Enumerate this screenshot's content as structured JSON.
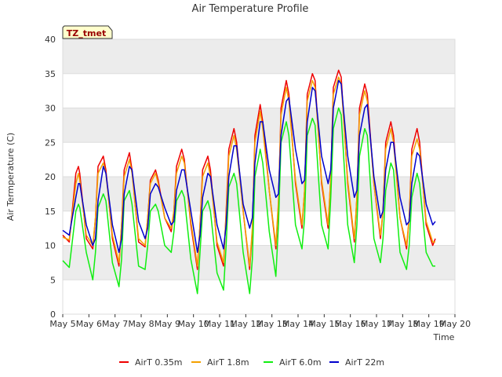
{
  "chart_data": {
    "type": "line",
    "title": "Air Temperature Profile",
    "xlabel": "Time",
    "ylabel": "Air Termperature (C)",
    "badge": "TZ_tmet",
    "xlim": [
      5,
      20
    ],
    "ylim": [
      0,
      40
    ],
    "x_ticks": [
      {
        "value": 5,
        "label": "May 5"
      },
      {
        "value": 6,
        "label": "May 6"
      },
      {
        "value": 7,
        "label": "May 7"
      },
      {
        "value": 8,
        "label": "May 8"
      },
      {
        "value": 9,
        "label": "May 9"
      },
      {
        "value": 10,
        "label": "May 10"
      },
      {
        "value": 11,
        "label": "May 11"
      },
      {
        "value": 12,
        "label": "May 12"
      },
      {
        "value": 13,
        "label": "May 13"
      },
      {
        "value": 14,
        "label": "May 14"
      },
      {
        "value": 15,
        "label": "May 15"
      },
      {
        "value": 16,
        "label": "May 16"
      },
      {
        "value": 17,
        "label": "May 17"
      },
      {
        "value": 18,
        "label": "May 18"
      },
      {
        "value": 19,
        "label": "May 19"
      },
      {
        "value": 20,
        "label": "May 20"
      }
    ],
    "y_ticks": [
      0,
      5,
      10,
      15,
      20,
      25,
      30,
      35,
      40
    ],
    "grid": true,
    "legend": "bottom",
    "series": [
      {
        "name": "AirT 0.35m",
        "color": "#ee0000",
        "x": [
          5.0,
          5.25,
          5.5,
          5.6,
          5.65,
          5.9,
          6.15,
          6.25,
          6.35,
          6.55,
          6.65,
          6.9,
          7.15,
          7.25,
          7.35,
          7.55,
          7.65,
          7.9,
          8.15,
          8.25,
          8.35,
          8.55,
          8.65,
          8.9,
          9.15,
          9.25,
          9.35,
          9.55,
          9.65,
          9.9,
          10.15,
          10.25,
          10.35,
          10.55,
          10.65,
          10.9,
          11.15,
          11.25,
          11.35,
          11.55,
          11.65,
          11.9,
          12.15,
          12.25,
          12.35,
          12.55,
          12.65,
          12.9,
          13.15,
          13.25,
          13.35,
          13.55,
          13.65,
          13.9,
          14.15,
          14.25,
          14.35,
          14.55,
          14.65,
          14.9,
          15.15,
          15.25,
          15.35,
          15.55,
          15.65,
          15.9,
          16.15,
          16.25,
          16.35,
          16.55,
          16.65,
          16.9,
          17.15,
          17.25,
          17.35,
          17.55,
          17.65,
          17.9,
          18.15,
          18.25,
          18.35,
          18.55,
          18.65,
          18.9,
          19.15,
          19.25
        ],
        "y": [
          11.5,
          10.5,
          20.5,
          21.5,
          20.5,
          11.0,
          9.5,
          14.0,
          21.5,
          23.0,
          21.0,
          11.0,
          7.0,
          13.0,
          21.0,
          23.5,
          21.0,
          10.5,
          9.8,
          14.0,
          19.5,
          21.0,
          19.5,
          14.0,
          12.0,
          15.0,
          21.5,
          24.0,
          22.5,
          13.0,
          6.5,
          13.0,
          21.0,
          23.0,
          21.0,
          10.0,
          7.0,
          15.0,
          24.0,
          27.0,
          25.0,
          15.0,
          6.5,
          12.0,
          26.0,
          30.5,
          28.0,
          18.0,
          9.5,
          16.0,
          30.0,
          34.0,
          32.0,
          19.0,
          12.5,
          18.0,
          32.0,
          35.0,
          34.0,
          19.0,
          12.5,
          20.0,
          33.0,
          35.5,
          34.5,
          19.0,
          10.5,
          17.0,
          30.0,
          33.5,
          32.0,
          19.0,
          11.0,
          15.0,
          25.0,
          28.0,
          26.0,
          14.0,
          9.5,
          14.0,
          24.0,
          27.0,
          25.0,
          13.0,
          10.0,
          11.0
        ]
      },
      {
        "name": "AirT 1.8m",
        "color": "#f4a000",
        "x": [
          5.0,
          5.25,
          5.5,
          5.6,
          5.65,
          5.9,
          6.15,
          6.25,
          6.35,
          6.55,
          6.65,
          6.9,
          7.15,
          7.25,
          7.35,
          7.55,
          7.65,
          7.9,
          8.15,
          8.25,
          8.35,
          8.55,
          8.65,
          8.9,
          9.15,
          9.25,
          9.35,
          9.55,
          9.65,
          9.9,
          10.15,
          10.25,
          10.35,
          10.55,
          10.65,
          10.9,
          11.15,
          11.25,
          11.35,
          11.55,
          11.65,
          11.9,
          12.15,
          12.25,
          12.35,
          12.55,
          12.65,
          12.9,
          13.15,
          13.25,
          13.35,
          13.55,
          13.65,
          13.9,
          14.15,
          14.25,
          14.35,
          14.55,
          14.65,
          14.9,
          15.15,
          15.25,
          15.35,
          15.55,
          15.65,
          15.9,
          16.15,
          16.25,
          16.35,
          16.55,
          16.65,
          16.9,
          17.15,
          17.25,
          17.35,
          17.55,
          17.65,
          17.9,
          18.15,
          18.25,
          18.35,
          18.55,
          18.65,
          18.9,
          19.15,
          19.25
        ],
        "y": [
          11.2,
          10.8,
          19.0,
          20.5,
          19.5,
          11.5,
          10.0,
          14.0,
          20.5,
          22.0,
          20.5,
          11.5,
          7.5,
          13.0,
          20.0,
          22.5,
          20.5,
          11.0,
          10.0,
          14.0,
          19.0,
          20.5,
          19.0,
          14.0,
          12.5,
          15.0,
          20.5,
          23.0,
          22.0,
          13.5,
          7.0,
          13.0,
          20.0,
          22.0,
          20.0,
          10.5,
          7.5,
          14.5,
          23.0,
          26.0,
          24.0,
          15.0,
          7.0,
          12.5,
          25.0,
          29.5,
          27.0,
          18.0,
          10.0,
          16.5,
          29.0,
          33.0,
          31.0,
          19.5,
          13.0,
          18.0,
          31.0,
          34.0,
          33.0,
          19.5,
          13.0,
          20.0,
          32.0,
          34.5,
          33.5,
          19.5,
          11.0,
          17.0,
          29.0,
          32.5,
          31.0,
          19.0,
          11.5,
          15.0,
          24.0,
          27.0,
          25.0,
          14.0,
          10.0,
          14.0,
          23.0,
          25.5,
          24.0,
          13.5,
          10.5,
          10.5
        ]
      },
      {
        "name": "AirT 6.0m",
        "color": "#11ee11",
        "x": [
          5.0,
          5.25,
          5.5,
          5.6,
          5.65,
          5.9,
          6.15,
          6.25,
          6.35,
          6.55,
          6.65,
          6.9,
          7.15,
          7.25,
          7.35,
          7.55,
          7.65,
          7.9,
          8.15,
          8.25,
          8.35,
          8.55,
          8.65,
          8.9,
          9.15,
          9.25,
          9.35,
          9.55,
          9.65,
          9.9,
          10.15,
          10.25,
          10.35,
          10.55,
          10.65,
          10.9,
          11.15,
          11.25,
          11.35,
          11.55,
          11.65,
          11.9,
          12.15,
          12.25,
          12.35,
          12.55,
          12.65,
          12.9,
          13.15,
          13.25,
          13.35,
          13.55,
          13.65,
          13.9,
          14.15,
          14.25,
          14.35,
          14.55,
          14.65,
          14.9,
          15.15,
          15.25,
          15.35,
          15.55,
          15.65,
          15.9,
          16.15,
          16.25,
          16.35,
          16.55,
          16.65,
          16.9,
          17.15,
          17.25,
          17.35,
          17.55,
          17.65,
          17.9,
          18.15,
          18.25,
          18.35,
          18.55,
          18.65,
          18.9,
          19.15,
          19.25
        ],
        "y": [
          7.8,
          6.8,
          15.0,
          16.0,
          15.5,
          9.0,
          5.0,
          9.0,
          15.5,
          17.5,
          16.5,
          7.5,
          4.0,
          8.0,
          16.5,
          18.0,
          16.0,
          7.0,
          6.5,
          10.0,
          15.0,
          16.0,
          15.0,
          10.0,
          9.0,
          12.0,
          16.5,
          18.0,
          17.0,
          8.0,
          3.0,
          9.0,
          15.0,
          16.5,
          15.0,
          6.0,
          3.5,
          10.0,
          18.5,
          20.5,
          19.0,
          9.0,
          3.0,
          8.0,
          20.0,
          24.0,
          22.0,
          12.0,
          5.5,
          13.0,
          25.0,
          28.0,
          26.0,
          13.0,
          9.5,
          14.0,
          26.0,
          28.5,
          27.5,
          13.0,
          9.5,
          17.0,
          27.0,
          30.0,
          29.0,
          13.0,
          7.5,
          13.0,
          23.0,
          27.0,
          26.0,
          11.0,
          7.5,
          11.0,
          18.0,
          22.0,
          21.0,
          9.0,
          6.5,
          10.0,
          17.0,
          20.5,
          19.0,
          9.0,
          7.0,
          7.0
        ]
      },
      {
        "name": "AirT 22m",
        "color": "#0000cc",
        "x": [
          5.0,
          5.25,
          5.5,
          5.6,
          5.65,
          5.9,
          6.15,
          6.25,
          6.35,
          6.55,
          6.65,
          6.9,
          7.15,
          7.25,
          7.35,
          7.55,
          7.65,
          7.9,
          8.15,
          8.25,
          8.35,
          8.55,
          8.65,
          8.9,
          9.15,
          9.25,
          9.35,
          9.55,
          9.65,
          9.9,
          10.15,
          10.25,
          10.35,
          10.55,
          10.65,
          10.9,
          11.15,
          11.25,
          11.35,
          11.55,
          11.65,
          11.9,
          12.15,
          12.25,
          12.35,
          12.55,
          12.65,
          12.9,
          13.15,
          13.25,
          13.35,
          13.55,
          13.65,
          13.9,
          14.15,
          14.25,
          14.35,
          14.55,
          14.65,
          14.9,
          15.15,
          15.25,
          15.35,
          15.55,
          15.65,
          15.9,
          16.15,
          16.25,
          16.35,
          16.55,
          16.65,
          16.9,
          17.15,
          17.25,
          17.35,
          17.55,
          17.65,
          17.9,
          18.15,
          18.25,
          18.35,
          18.55,
          18.65,
          18.9,
          19.15,
          19.25
        ],
        "y": [
          12.2,
          11.5,
          17.0,
          19.0,
          19.0,
          13.0,
          10.0,
          11.0,
          16.5,
          21.5,
          20.5,
          13.0,
          9.0,
          11.0,
          17.5,
          21.5,
          21.0,
          13.5,
          11.0,
          12.5,
          17.5,
          19.0,
          18.5,
          15.5,
          13.0,
          13.5,
          18.0,
          21.0,
          21.0,
          15.0,
          9.0,
          11.5,
          17.0,
          20.5,
          20.0,
          13.0,
          9.5,
          13.0,
          20.0,
          24.5,
          24.5,
          16.0,
          12.5,
          14.0,
          22.0,
          28.0,
          28.0,
          21.0,
          17.0,
          17.5,
          26.0,
          31.0,
          31.5,
          24.0,
          19.0,
          19.5,
          28.0,
          33.0,
          32.5,
          23.0,
          19.0,
          21.0,
          30.0,
          34.0,
          33.5,
          23.0,
          17.0,
          18.0,
          26.0,
          30.0,
          30.5,
          20.0,
          14.0,
          15.0,
          21.0,
          25.0,
          25.0,
          17.0,
          13.0,
          13.5,
          19.0,
          23.5,
          23.0,
          16.0,
          13.0,
          13.5
        ]
      }
    ]
  }
}
